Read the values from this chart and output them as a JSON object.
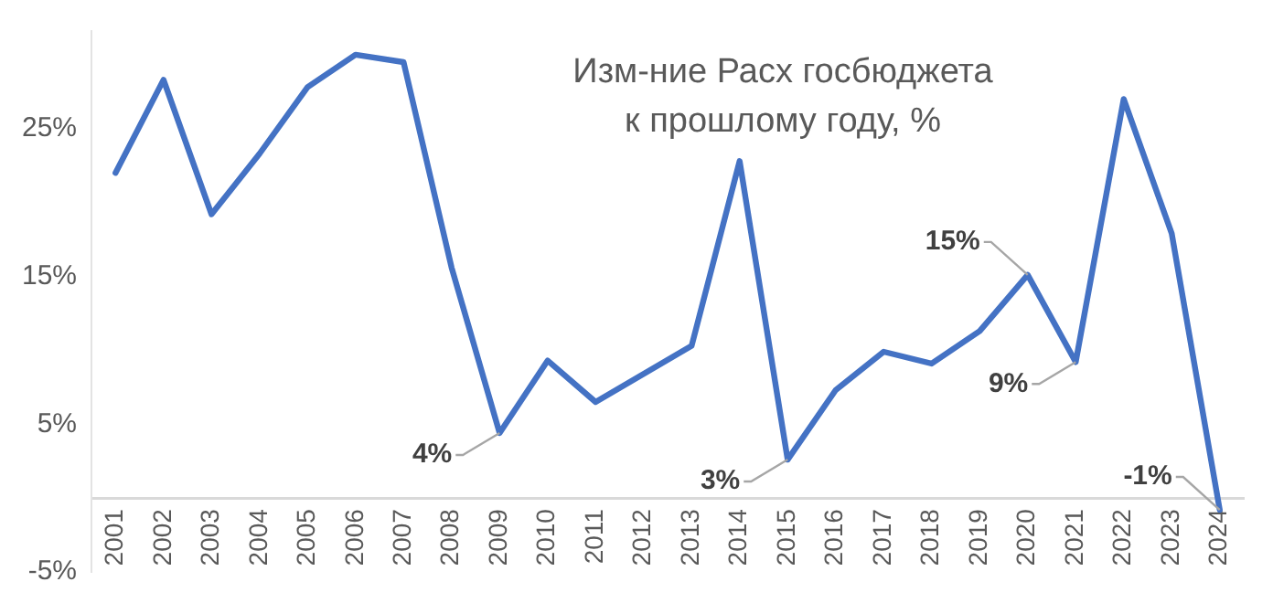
{
  "chart_data": {
    "type": "line",
    "title": "Изм-ние Расх госбюджета\nк прошлому году, %",
    "categories": [
      "2001",
      "2002",
      "2003",
      "2004",
      "2005",
      "2006",
      "2007",
      "2008",
      "2009",
      "2010",
      "2011",
      "2012",
      "2013",
      "2014",
      "2015",
      "2016",
      "2017",
      "2018",
      "2019",
      "2020",
      "2021",
      "2022",
      "2023",
      "2024"
    ],
    "series": [
      {
        "color": "#4472c4",
        "values": [
          22.0,
          28.3,
          19.2,
          23.3,
          27.8,
          30.0,
          29.5,
          15.6,
          4.4,
          9.3,
          6.5,
          8.4,
          10.3,
          22.8,
          2.6,
          7.3,
          9.9,
          9.1,
          11.3,
          15.1,
          9.2,
          27.0,
          17.9,
          -0.8
        ],
        "value_labels": [
          null,
          null,
          null,
          null,
          null,
          null,
          null,
          null,
          "4%",
          null,
          null,
          null,
          null,
          null,
          "3%",
          null,
          null,
          null,
          null,
          "15%",
          "9%",
          null,
          null,
          "-1%"
        ]
      }
    ],
    "ylim": [
      -5,
      31.6
    ],
    "yticks": [
      {
        "value": -5,
        "label": "-5%"
      },
      {
        "value": 5,
        "label": "5%"
      },
      {
        "value": 15,
        "label": "15%"
      },
      {
        "value": 25,
        "label": "25%"
      }
    ],
    "grid": false,
    "legend": false,
    "marker": "none",
    "line_style": "solid"
  }
}
